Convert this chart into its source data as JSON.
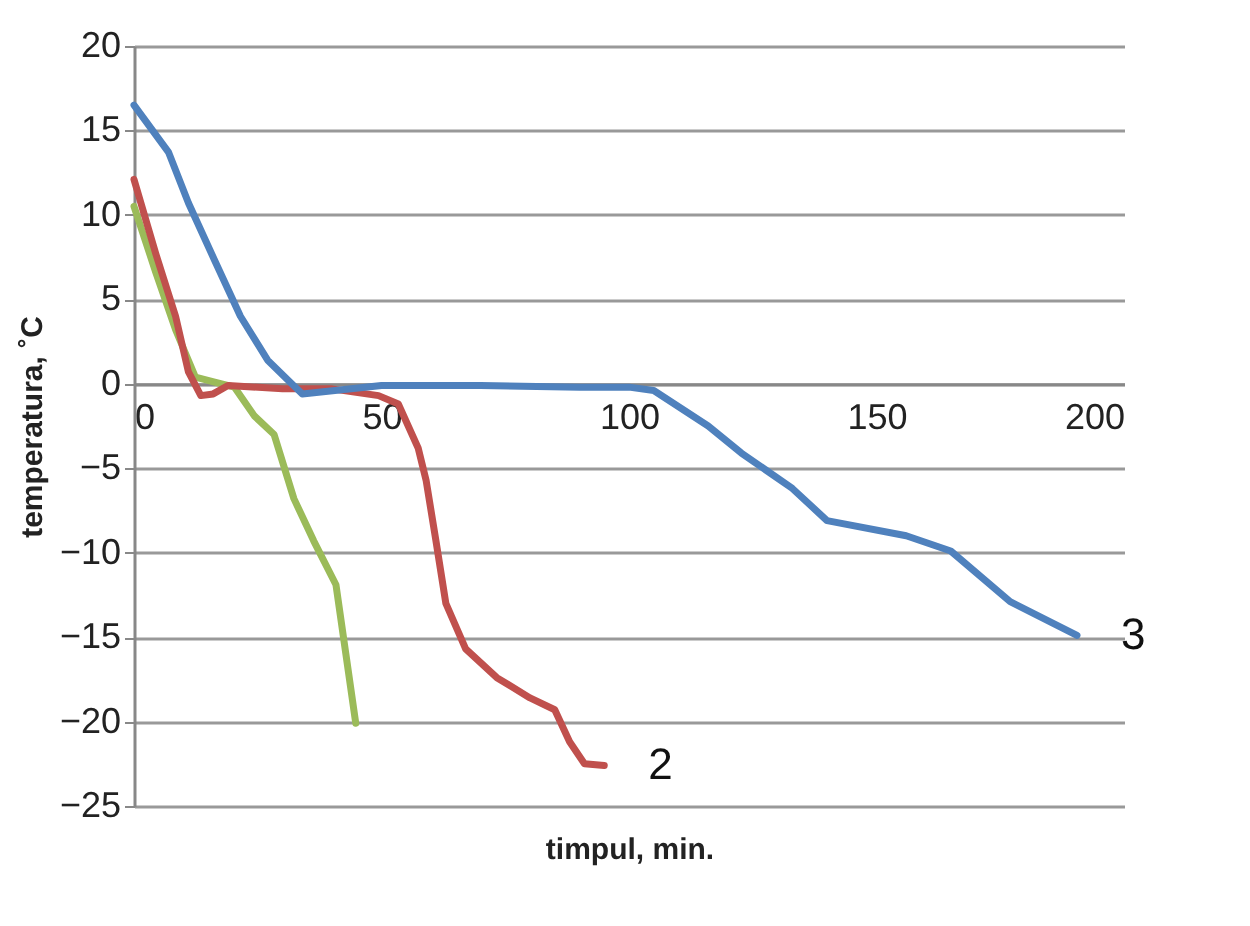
{
  "chart_data": {
    "type": "line",
    "xlabel": "timpul, min.",
    "ylabel": "temperatura, ˚C",
    "xlim": [
      0,
      200
    ],
    "xticks": [
      0,
      50,
      100,
      150,
      200
    ],
    "ylim": [
      -25,
      20
    ],
    "yticks": [
      -25,
      -20,
      -15,
      -10,
      -5,
      0,
      5,
      10,
      15,
      20
    ],
    "grid": "y",
    "legend": false,
    "marker": "none",
    "line_style": "solid",
    "series": [
      {
        "color": "#9bbb59",
        "x": [
          0,
          4.4,
          8.4,
          12.4,
          16.3,
          20.3,
          24.3,
          28.3,
          32.3,
          36.3,
          40.8,
          42.8,
          44.8
        ],
        "values": [
          10.5,
          6.6,
          3.2,
          0.4,
          0.1,
          -0.2,
          -1.9,
          -3,
          -6.8,
          -9.3,
          -11.9,
          -16,
          -20.1
        ]
      },
      {
        "name": "2",
        "color": "#c0504d",
        "x": [
          0,
          4.4,
          8.4,
          11,
          13.5,
          16,
          19,
          30,
          40,
          49.4,
          53.4,
          57.4,
          59,
          61,
          63,
          67,
          73.3,
          80,
          85,
          88,
          91,
          95
        ],
        "values": [
          12.1,
          7.7,
          4,
          0.7,
          -0.7,
          -0.6,
          -0.1,
          -0.3,
          -0.3,
          -0.7,
          -1.2,
          -3.8,
          -5.7,
          -9.3,
          -13,
          -15.7,
          -17.4,
          -18.6,
          -19.3,
          -21.2,
          -22.5,
          -22.6
        ]
      },
      {
        "name": "3",
        "color": "#4f81bd",
        "x": [
          0,
          7,
          11,
          16.3,
          21.5,
          27,
          31.5,
          34,
          50,
          70,
          90,
          100,
          105,
          116,
          122.7,
          133,
          140,
          156,
          165,
          177,
          190.5
        ],
        "values": [
          16.5,
          13.7,
          10.7,
          7.3,
          4,
          1.4,
          0.1,
          -0.6,
          -0.1,
          -0.1,
          -0.2,
          -0.2,
          -0.4,
          -2.5,
          -4.1,
          -6.2,
          -8.1,
          -9,
          -9.9,
          -12.9,
          -14.9
        ]
      }
    ]
  }
}
